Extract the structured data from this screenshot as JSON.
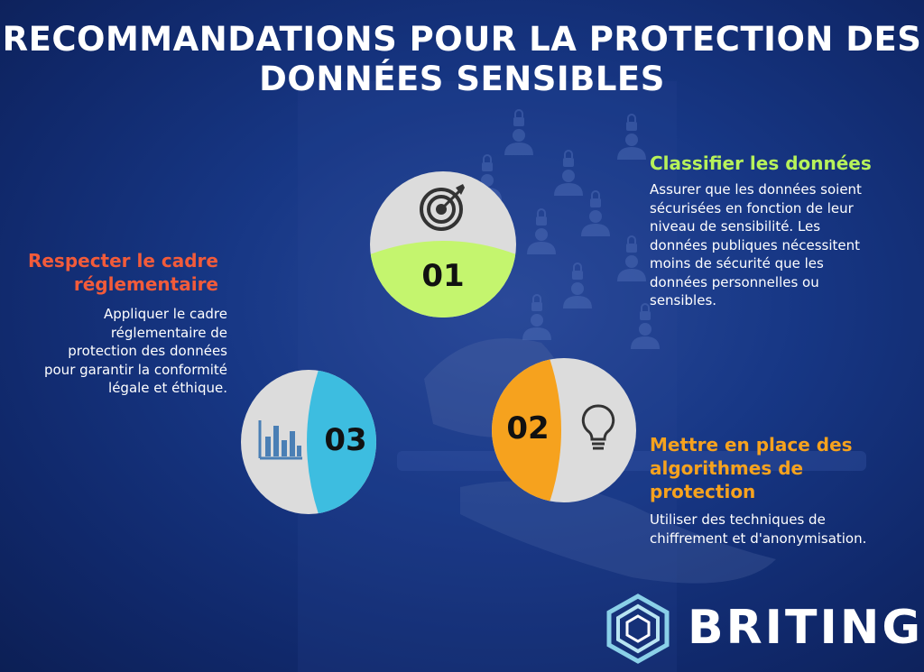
{
  "title": {
    "line1": "RECOMMANDATIONS POUR  LA PROTECTION DES",
    "line2": "DONNÉES SENSIBLES"
  },
  "colors": {
    "green": "#c4f56e",
    "orange": "#f6a21e",
    "cyan": "#3dbde0",
    "red": "#f25b3a",
    "yellow_heading": "#f6a21e",
    "green_heading": "#b7f25a"
  },
  "steps": [
    {
      "number": "01",
      "icon": "target-icon",
      "heading": "Classifier les données",
      "body": [
        "Assurer que les données soient",
        "sécurisées en fonction de leur",
        "niveau de sensibilité. Les",
        "données publiques nécessitent",
        "moins de sécurité que les",
        "données personnelles ou",
        "sensibles."
      ]
    },
    {
      "number": "02",
      "icon": "lightbulb-icon",
      "heading": [
        "Mettre en place des",
        "algorithmes de",
        "protection"
      ],
      "body": [
        "Utiliser des techniques de",
        "chiffrement et d'anonymisation."
      ]
    },
    {
      "number": "03",
      "icon": "bar-chart-icon",
      "heading": [
        "Respecter le cadre",
        "réglementaire"
      ],
      "body": [
        "Appliquer le cadre",
        "réglementaire de",
        "protection des données",
        "pour garantir la conformité",
        "légale et éthique."
      ]
    }
  ],
  "brand": {
    "name": "BRITING"
  }
}
